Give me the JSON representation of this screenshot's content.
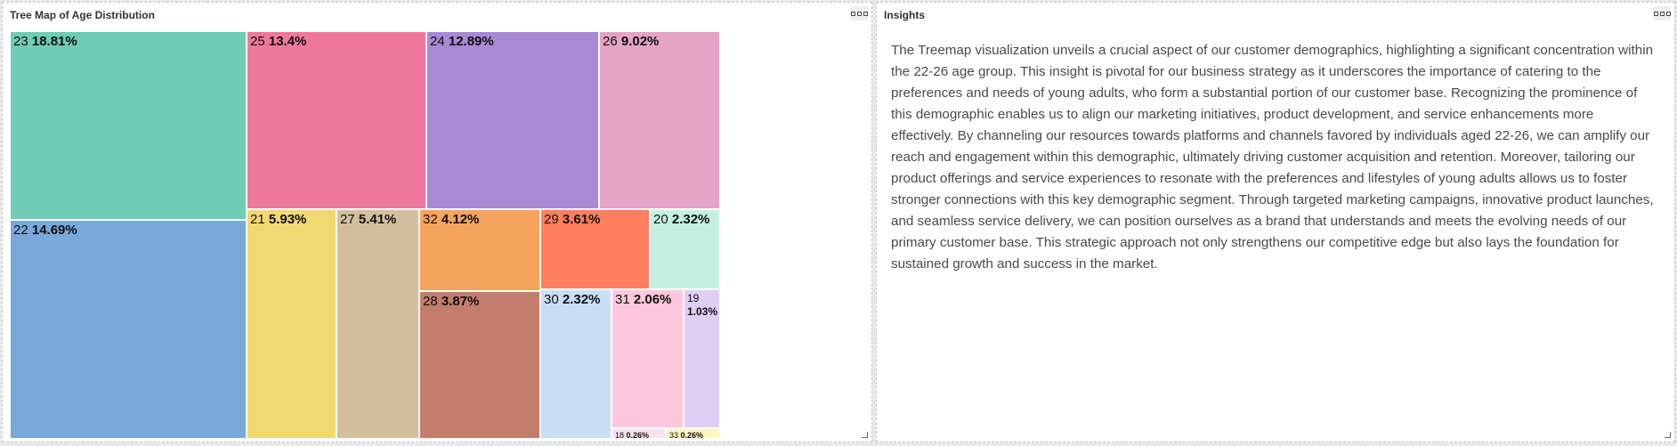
{
  "treemap_panel": {
    "title": "Tree Map of Age Distribution"
  },
  "insights_panel": {
    "title": "Insights",
    "text": "The Treemap visualization unveils a crucial aspect of our customer demographics, highlighting a significant concentration within the 22-26 age group. This insight is pivotal for our business strategy as it underscores the importance of catering to the preferences and needs of young adults, who form a substantial portion of our customer base. Recognizing the prominence of this demographic enables us to align our marketing initiatives, product development, and service enhancements more effectively. By channeling our resources towards platforms and channels favored by individuals aged 22-26, we can amplify our reach and engagement within this demographic, ultimately driving customer acquisition and retention. Moreover, tailoring our product offerings and service experiences to resonate with the preferences and lifestyles of young adults allows us to foster stronger connections with this key demographic segment. Through targeted marketing campaigns, innovative product launches, and seamless service delivery, we can position ourselves as a brand that understands and meets the evolving needs of our primary customer base. This strategic approach not only strengthens our competitive edge but also lays the foundation for sustained growth and success in the market."
  },
  "chart_data": {
    "type": "treemap",
    "title": "Tree Map of Age Distribution",
    "items": [
      {
        "category": "23",
        "value": 18.81,
        "label": "18.81%",
        "color": "#6ecdb3"
      },
      {
        "category": "22",
        "value": 14.69,
        "label": "14.69%",
        "color": "#79a9da"
      },
      {
        "category": "25",
        "value": 13.4,
        "label": "13.4%",
        "color": "#ee789d"
      },
      {
        "category": "24",
        "value": 12.89,
        "label": "12.89%",
        "color": "#a889d5"
      },
      {
        "category": "26",
        "value": 9.02,
        "label": "9.02%",
        "color": "#e3a4c6"
      },
      {
        "category": "21",
        "value": 5.93,
        "label": "5.93%",
        "color": "#f1d872"
      },
      {
        "category": "27",
        "value": 5.41,
        "label": "5.41%",
        "color": "#d3bf9e"
      },
      {
        "category": "32",
        "value": 4.12,
        "label": "4.12%",
        "color": "#f5a45d"
      },
      {
        "category": "28",
        "value": 3.87,
        "label": "3.87%",
        "color": "#c47d6c"
      },
      {
        "category": "29",
        "value": 3.61,
        "label": "3.61%",
        "color": "#ff7f5f"
      },
      {
        "category": "20",
        "value": 2.32,
        "label": "2.32%",
        "color": "#c4f0e2"
      },
      {
        "category": "30",
        "value": 2.32,
        "label": "2.32%",
        "color": "#c9dff7"
      },
      {
        "category": "31",
        "value": 2.06,
        "label": "2.06%",
        "color": "#fec8dc"
      },
      {
        "category": "19",
        "value": 1.03,
        "label": "1.03%",
        "color": "#decff4"
      },
      {
        "category": "18",
        "value": 0.26,
        "label": "0.26%",
        "color": "#fce2ec"
      },
      {
        "category": "33",
        "value": 0.26,
        "label": "0.26%",
        "color": "#fef5c2"
      }
    ]
  }
}
